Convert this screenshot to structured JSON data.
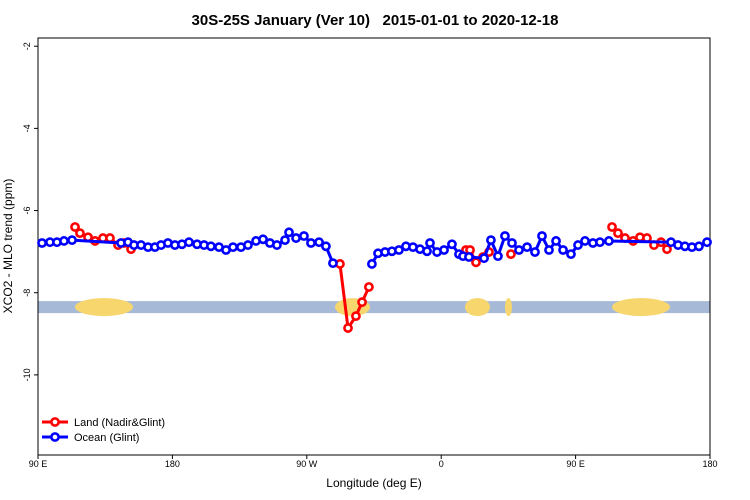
{
  "chart_data": {
    "type": "line",
    "title": "30S-25S January (Ver 10)   2015-01-01 to 2020-12-18",
    "x_label": "Longitude (deg E)",
    "y_label": "XCO2 - MLO trend (ppm)",
    "xlim": [
      90,
      540
    ],
    "xticks": [
      {
        "value": 90,
        "label": "90 E"
      },
      180,
      {
        "value": 270,
        "label": "90 W"
      },
      {
        "value": 360,
        "label": "0"
      },
      {
        "value": 450,
        "label": "90 E"
      },
      {
        "value": 540,
        "label": "180"
      }
    ],
    "ylim": [
      -11.95,
      -1.8
    ],
    "yticks": [
      -2,
      -4,
      -6,
      -8,
      -10
    ],
    "legend": "bottom-left",
    "mask_y": -8.35,
    "mask_ocean_color": "#a6bad8",
    "mask_land_color": "#f7d66e",
    "land_mask": [
      [
        114.8,
        153.6
      ],
      [
        288.9,
        312.3
      ],
      [
        375.9,
        392.7
      ],
      [
        402.7,
        407.4
      ],
      [
        474.4,
        513.2
      ]
    ],
    "series": [
      {
        "name": "Land (Nadir&Glint)",
        "color": "#ff0000",
        "x": [
          114.8,
          118.1,
          123.5,
          128.2,
          133.5,
          138.2,
          143.6,
          147.6,
          152.3,
          null,
          292.2,
          297.6,
          302.9,
          307.0,
          311.6,
          null,
          376.6,
          379.3,
          383.3,
          388.0,
          392.0,
          null,
          406.7,
          null,
          474.4,
          478.4,
          483.1,
          488.5,
          493.1,
          497.8,
          502.5,
          507.2,
          511.2
        ],
        "values": [
          -6.4,
          -6.55,
          -6.65,
          -6.74,
          -6.67,
          -6.67,
          -6.84,
          -6.79,
          -6.94,
          null,
          -7.3,
          -8.86,
          -8.57,
          -8.23,
          -7.86,
          null,
          -6.96,
          -6.96,
          -7.26,
          -7.13,
          -7.01,
          null,
          -7.06,
          null,
          -6.4,
          -6.55,
          -6.67,
          -6.74,
          -6.65,
          -6.67,
          -6.84,
          -6.77,
          -6.94
        ]
      },
      {
        "name": "Ocean (Glint)",
        "color": "#0000ff",
        "x": [
          92.7,
          98.0,
          102.7,
          107.4,
          112.8,
          145.6,
          150.3,
          154.3,
          159.0,
          163.7,
          168.3,
          172.4,
          177.0,
          181.7,
          186.4,
          191.1,
          196.5,
          201.2,
          205.8,
          211.2,
          215.9,
          220.6,
          225.9,
          230.6,
          236.0,
          240.7,
          245.3,
          250.0,
          255.4,
          258.1,
          262.8,
          268.1,
          272.8,
          278.2,
          282.8,
          287.5,
          null,
          313.6,
          317.7,
          322.4,
          327.0,
          331.7,
          336.4,
          341.1,
          345.8,
          350.5,
          352.5,
          357.2,
          361.9,
          367.2,
          371.9,
          374.6,
          378.6,
          388.7,
          393.3,
          398.0,
          402.7,
          407.4,
          412.1,
          417.5,
          422.8,
          427.5,
          432.2,
          436.9,
          441.6,
          446.9,
          451.6,
          456.3,
          461.6,
          466.3,
          472.3,
          513.9,
          518.6,
          523.2,
          527.9,
          532.6,
          538.0
        ],
        "values": [
          -6.79,
          -6.77,
          -6.77,
          -6.74,
          -6.72,
          -6.79,
          -6.77,
          -6.84,
          -6.84,
          -6.89,
          -6.89,
          -6.84,
          -6.79,
          -6.84,
          -6.82,
          -6.77,
          -6.82,
          -6.84,
          -6.87,
          -6.89,
          -6.96,
          -6.89,
          -6.89,
          -6.84,
          -6.74,
          -6.7,
          -6.79,
          -6.84,
          -6.72,
          -6.53,
          -6.67,
          -6.62,
          -6.79,
          -6.77,
          -6.87,
          -7.28,
          null,
          -7.3,
          -7.04,
          -7.01,
          -6.99,
          -6.96,
          -6.87,
          -6.89,
          -6.94,
          -6.99,
          -6.79,
          -7.01,
          -6.96,
          -6.82,
          -7.06,
          -7.11,
          -7.13,
          -7.16,
          -6.72,
          -7.11,
          -6.62,
          -6.79,
          -6.96,
          -6.89,
          -7.01,
          -6.62,
          -6.96,
          -6.74,
          -6.96,
          -7.06,
          -6.84,
          -6.74,
          -6.79,
          -6.77,
          -6.74,
          -6.77,
          -6.84,
          -6.87,
          -6.89,
          -6.87,
          -6.77
        ]
      }
    ]
  }
}
